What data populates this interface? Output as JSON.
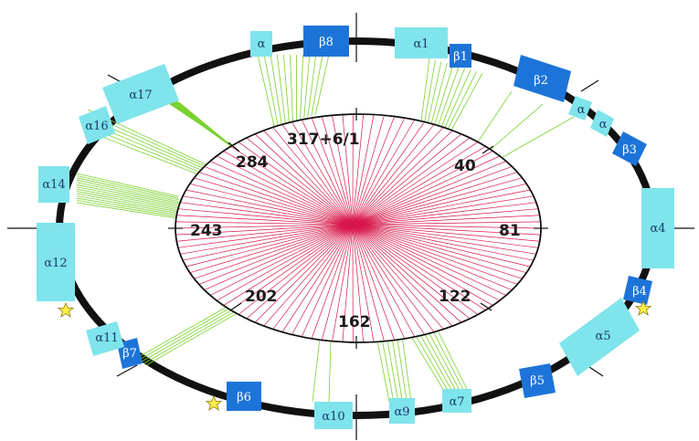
{
  "colors": {
    "helix": "#7fe4ec",
    "strand": "#1d74d8",
    "helix_text": "#1a3a6a",
    "strand_text": "#ffffff",
    "ring": "#111111",
    "contact_long": "#7ad12e",
    "contact_short": "#d8174a",
    "star": "#ffee44"
  },
  "inner": {
    "labels": [
      "317+6/1",
      "40",
      "81",
      "122",
      "162",
      "202",
      "243",
      "284"
    ]
  },
  "segments": [
    {
      "label": "α",
      "kind": "helix"
    },
    {
      "label": "β8",
      "kind": "strand"
    },
    {
      "label": "α1",
      "kind": "helix"
    },
    {
      "label": "β1",
      "kind": "strand"
    },
    {
      "label": "β2",
      "kind": "strand"
    },
    {
      "label": "α",
      "kind": "helix"
    },
    {
      "label": "α",
      "kind": "helix"
    },
    {
      "label": "β3",
      "kind": "strand"
    },
    {
      "label": "α4",
      "kind": "helix"
    },
    {
      "label": "β4",
      "kind": "strand"
    },
    {
      "label": "α5",
      "kind": "helix"
    },
    {
      "label": "β5",
      "kind": "strand"
    },
    {
      "label": "α7",
      "kind": "helix"
    },
    {
      "label": "α9",
      "kind": "helix"
    },
    {
      "label": "α10",
      "kind": "helix"
    },
    {
      "label": "β6",
      "kind": "strand"
    },
    {
      "label": "β7",
      "kind": "strand"
    },
    {
      "label": "α11",
      "kind": "helix"
    },
    {
      "label": "α12",
      "kind": "helix"
    },
    {
      "label": "α14",
      "kind": "helix"
    },
    {
      "label": "α16",
      "kind": "helix"
    },
    {
      "label": "α17",
      "kind": "helix"
    }
  ]
}
